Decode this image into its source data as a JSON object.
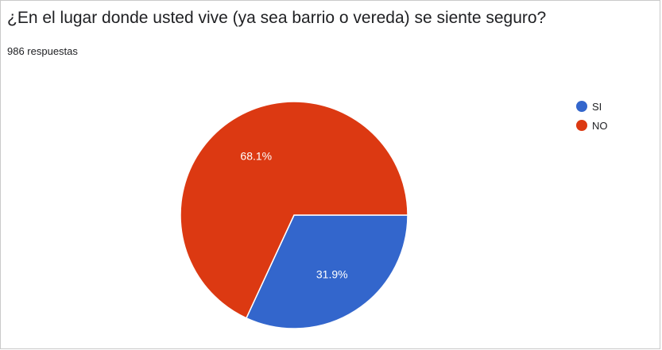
{
  "header": {
    "title": "¿En el lugar donde usted vive (ya sea barrio o vereda) se siente seguro?",
    "responses": "986 respuestas"
  },
  "chart_data": {
    "type": "pie",
    "categories": [
      "SI",
      "NO"
    ],
    "values": [
      31.9,
      68.1
    ],
    "value_labels": [
      "31.9%",
      "68.1%"
    ],
    "colors": [
      "#3366cc",
      "#dc3912"
    ],
    "legend_position": "right",
    "title": "¿En el lugar donde usted vive (ya sea barrio o vereda) se siente seguro?"
  }
}
